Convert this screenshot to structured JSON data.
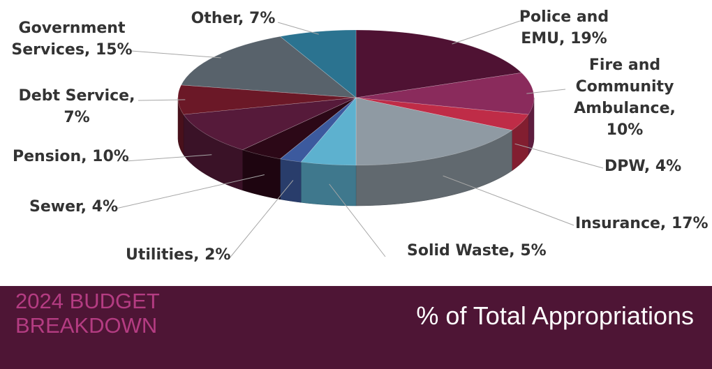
{
  "colors": {
    "footer_bg": "#4e1535",
    "section_title": "#b43c82",
    "main_title": "#ffffff"
  },
  "footer": {
    "section_title_line1": "2024 BUDGET",
    "section_title_line2": "BREAKDOWN",
    "main_title": "% of Total Appropriations"
  },
  "chart_data": {
    "type": "pie",
    "style": "3d",
    "slices": [
      {
        "label": "Police and EMU",
        "value": 19,
        "display": [
          "Police and",
          "EMU, 19%"
        ],
        "color": "#4f1233"
      },
      {
        "label": "Fire and Community Ambulance",
        "value": 10,
        "display": [
          "Fire and",
          "Community",
          "Ambulance,",
          "10%"
        ],
        "color": "#8a2b5c"
      },
      {
        "label": "DPW",
        "value": 4,
        "display": [
          "DPW, 4%"
        ],
        "color": "#bf2c47"
      },
      {
        "label": "Insurance",
        "value": 17,
        "display": [
          "Insurance, 17%"
        ],
        "color": "#8f9aa3"
      },
      {
        "label": "Solid Waste",
        "value": 5,
        "display": [
          "Solid Waste, 5%"
        ],
        "color": "#5db1cf"
      },
      {
        "label": "Utilities",
        "value": 2,
        "display": [
          "Utilities, 2%"
        ],
        "color": "#3c5a9e"
      },
      {
        "label": "Sewer",
        "value": 4,
        "display": [
          "Sewer, 4%"
        ],
        "color": "#2c0817"
      },
      {
        "label": "Pension",
        "value": 10,
        "display": [
          "Pension, 10%"
        ],
        "color": "#561a3a"
      },
      {
        "label": "Debt Service",
        "value": 7,
        "display": [
          "Debt Service,",
          "7%"
        ],
        "color": "#6b1827"
      },
      {
        "label": "Government Services",
        "value": 15,
        "display": [
          "Government",
          "Services, 15%"
        ],
        "color": "#58626b"
      },
      {
        "label": "Other",
        "value": 7,
        "display": [
          "Other, 7%"
        ],
        "color": "#2b7390"
      }
    ],
    "legend": "none"
  }
}
